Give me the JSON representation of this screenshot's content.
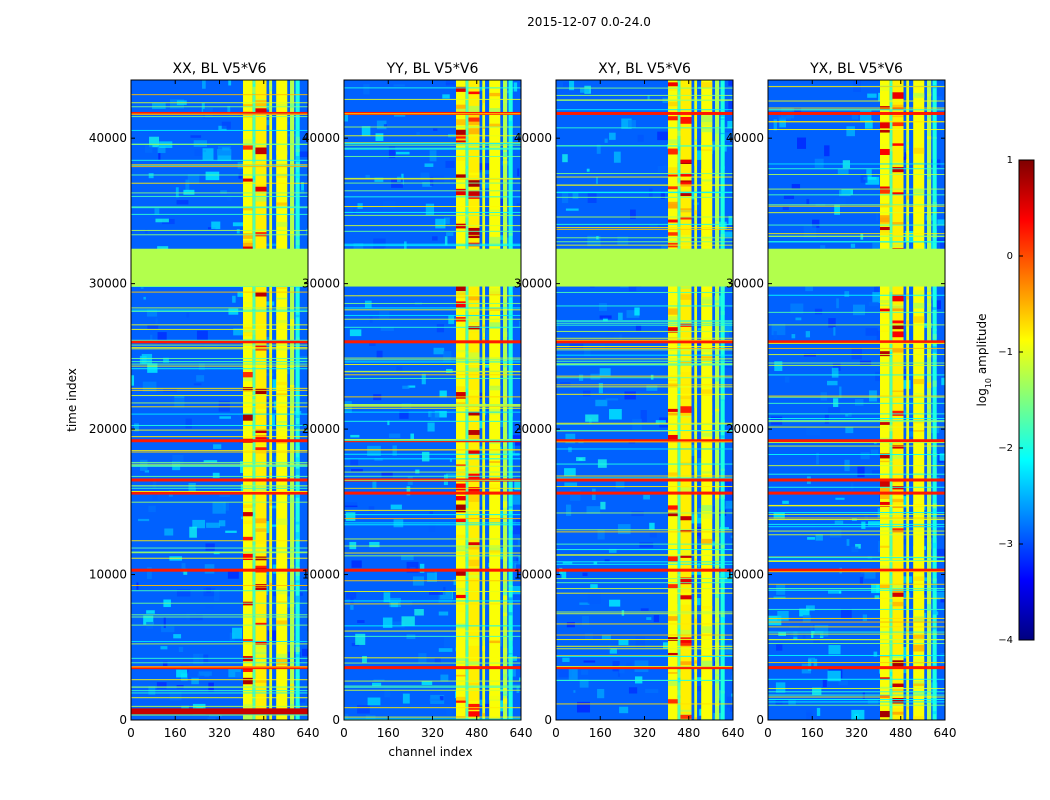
{
  "figure": {
    "suptitle": "2015-12-07 0.0-24.0"
  },
  "chart_data": [
    {
      "type": "heatmap",
      "title": "XX, BL V5*V6",
      "xlabel": "",
      "ylabel": "time index",
      "xlim": [
        0,
        640
      ],
      "ylim": [
        0,
        44000
      ],
      "xticks": [
        "0",
        "160",
        "320",
        "480",
        "640"
      ],
      "yticks": [
        "0",
        "10000",
        "20000",
        "30000",
        "40000"
      ],
      "flag_band_time_range": [
        29800,
        32400
      ]
    },
    {
      "type": "heatmap",
      "title": "YY, BL V5*V6",
      "xlabel": "channel index",
      "ylabel": "",
      "xlim": [
        0,
        640
      ],
      "ylim": [
        0,
        44000
      ],
      "xticks": [
        "0",
        "160",
        "320",
        "480",
        "640"
      ],
      "yticks": [
        "0",
        "10000",
        "20000",
        "30000",
        "40000"
      ],
      "flag_band_time_range": [
        29800,
        32400
      ]
    },
    {
      "type": "heatmap",
      "title": "XY, BL V5*V6",
      "xlabel": "",
      "ylabel": "",
      "xlim": [
        0,
        640
      ],
      "ylim": [
        0,
        44000
      ],
      "xticks": [
        "0",
        "160",
        "320",
        "480",
        "640"
      ],
      "yticks": [
        "0",
        "10000",
        "20000",
        "30000",
        "40000"
      ],
      "flag_band_time_range": [
        29800,
        32400
      ]
    },
    {
      "type": "heatmap",
      "title": "YX, BL V5*V6",
      "xlabel": "",
      "ylabel": "",
      "xlim": [
        0,
        640
      ],
      "ylim": [
        0,
        44000
      ],
      "xticks": [
        "0",
        "160",
        "320",
        "480",
        "640"
      ],
      "yticks": [
        "0",
        "10000",
        "20000",
        "30000",
        "40000"
      ],
      "flag_band_time_range": [
        29800,
        32400
      ]
    }
  ],
  "colorbar": {
    "label": "log10 amplitude",
    "label_base": "log",
    "label_sub": "10",
    "label_rest": " amplitude",
    "range": [
      -4,
      1
    ],
    "ticks": [
      "1",
      "0",
      "−1",
      "−2",
      "−3",
      "−4"
    ],
    "colormap": [
      "#00007f",
      "#0000ff",
      "#007fff",
      "#00ffff",
      "#7fff7f",
      "#ffff00",
      "#ff7f00",
      "#ff0000",
      "#7f0000"
    ]
  }
}
